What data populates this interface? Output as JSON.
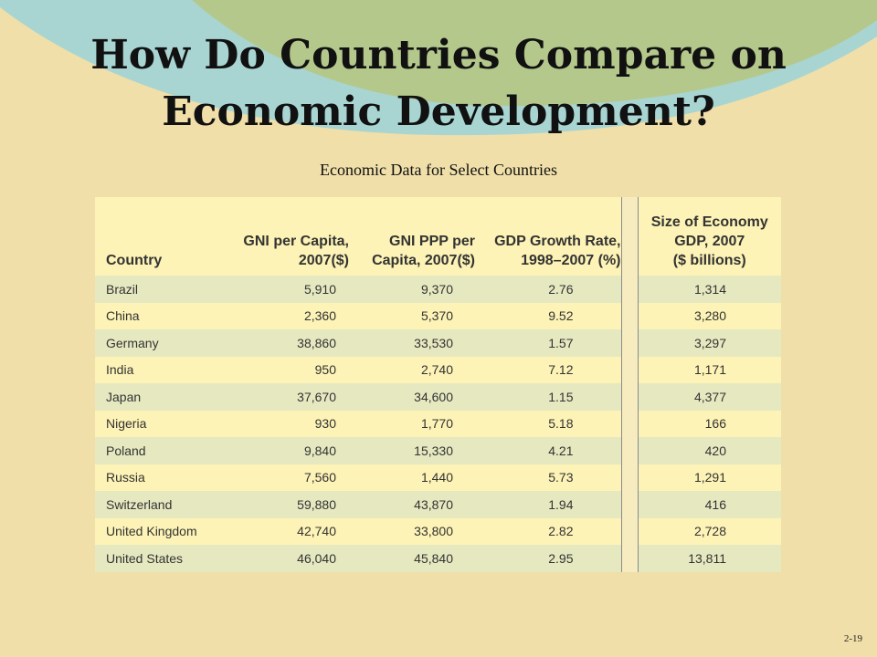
{
  "title": {
    "line1": "How Do Countries Compare on",
    "line2": "Economic Development?"
  },
  "caption": "Economic Data for Select Countries",
  "colors": {
    "background": "#f0dfa9",
    "arc_teal": "#a8d5d2",
    "arc_green": "#b5c88c",
    "row_band": "#e6e9c0",
    "row_plain": "#fdf3b6"
  },
  "table": {
    "headers": {
      "country": "Country",
      "gni_line1": "GNI per Capita,",
      "gni_line2": "2007($)",
      "ppp_line1": "GNI PPP per",
      "ppp_line2": "Capita, 2007($)",
      "growth_line1": "GDP Growth Rate,",
      "growth_line2": "1998–2007 (%)",
      "size_line1": "Size of Economy",
      "size_line2": "GDP, 2007",
      "size_line3": "($ billions)"
    },
    "rows": [
      {
        "country": "Brazil",
        "gni": "5,910",
        "ppp": "9,370",
        "growth": "2.76",
        "size": "1,314"
      },
      {
        "country": "China",
        "gni": "2,360",
        "ppp": "5,370",
        "growth": "9.52",
        "size": "3,280"
      },
      {
        "country": "Germany",
        "gni": "38,860",
        "ppp": "33,530",
        "growth": "1.57",
        "size": "3,297"
      },
      {
        "country": "India",
        "gni": "950",
        "ppp": "2,740",
        "growth": "7.12",
        "size": "1,171"
      },
      {
        "country": "Japan",
        "gni": "37,670",
        "ppp": "34,600",
        "growth": "1.15",
        "size": "4,377"
      },
      {
        "country": "Nigeria",
        "gni": "930",
        "ppp": "1,770",
        "growth": "5.18",
        "size": "166"
      },
      {
        "country": "Poland",
        "gni": "9,840",
        "ppp": "15,330",
        "growth": "4.21",
        "size": "420"
      },
      {
        "country": "Russia",
        "gni": "7,560",
        "ppp": "1,440",
        "growth": "5.73",
        "size": "1,291"
      },
      {
        "country": "Switzerland",
        "gni": "59,880",
        "ppp": "43,870",
        "growth": "1.94",
        "size": "416"
      },
      {
        "country": "United Kingdom",
        "gni": "42,740",
        "ppp": "33,800",
        "growth": "2.82",
        "size": "2,728"
      },
      {
        "country": "United States",
        "gni": "46,040",
        "ppp": "45,840",
        "growth": "2.95",
        "size": "13,811"
      }
    ]
  },
  "page_number": "2-19"
}
